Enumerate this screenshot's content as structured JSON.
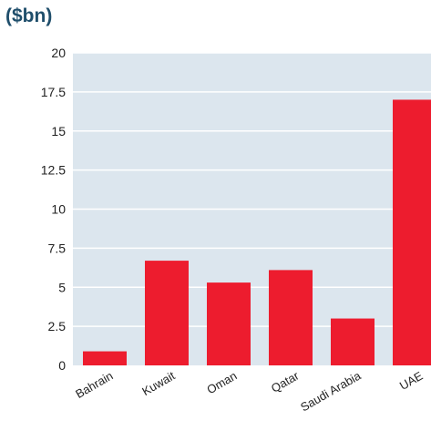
{
  "chart_data": {
    "type": "bar",
    "title": "($bn)",
    "categories": [
      "Bahrain",
      "Kuwait",
      "Oman",
      "Qatar",
      "Saudi Arabia",
      "UAE"
    ],
    "values": [
      0.9,
      6.7,
      5.3,
      6.1,
      3.0,
      17.0
    ],
    "ylim": [
      0,
      20
    ],
    "yticks": [
      "0",
      "2.5",
      "5",
      "7.5",
      "10",
      "12.5",
      "15",
      "17.5",
      "20"
    ],
    "grid": true,
    "colors": {
      "bar": "#ed1c2e",
      "plot_background": "#dce6ee",
      "gridline": "#ffffff",
      "title": "#1f4e6b"
    }
  }
}
